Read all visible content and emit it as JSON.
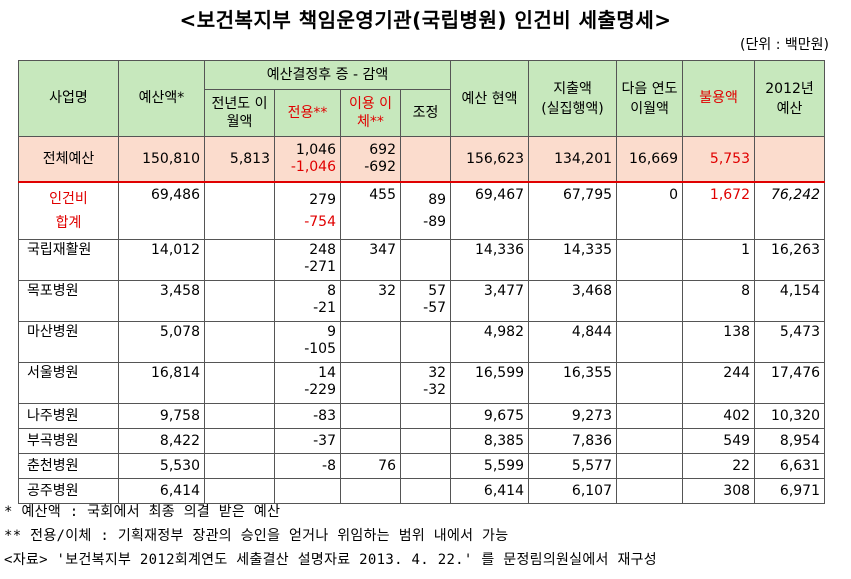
{
  "title": "<보건복지부 책임운영기관(국립병원) 인건비 세출명세>",
  "unit": "(단위 : 백만원)",
  "headers": {
    "biz": "사업명",
    "budget": "예산액*",
    "adjust_group": "예산결정후 증 - 감액",
    "carry_prev": "전년도 이월액",
    "transfer": "전용**",
    "reallocation": "이용 이체**",
    "adjust": "조정",
    "current": "예산 현액",
    "expense_a": "지출액",
    "expense_b": "(실집행액)",
    "carry_next": "다음 연도 이월액",
    "unused": "불용액",
    "budget2012": "2012년 예산"
  },
  "rows": [
    {
      "name": "전체예산",
      "budget": "150,810",
      "carry_prev": "5,813",
      "transfer_a": "1,046",
      "transfer_b": "-1,046",
      "realloc_a": "692",
      "realloc_b": "-692",
      "adjust_a": "",
      "adjust_b": "",
      "current": "156,623",
      "expense": "134,201",
      "carry_next": "16,669",
      "unused": "5,753",
      "budget2012": ""
    },
    {
      "name_a": "인건비",
      "name_b": "합계",
      "budget": "69,486",
      "carry_prev": "",
      "transfer_a": "279",
      "transfer_b": "-754",
      "realloc_a": "455",
      "realloc_b": "",
      "adjust_a": "89",
      "adjust_b": "-89",
      "current": "69,467",
      "expense": "67,795",
      "carry_next": "0",
      "unused": "1,672",
      "budget2012": "76,242"
    },
    {
      "name": "국립재활원",
      "budget": "14,012",
      "carry_prev": "",
      "transfer_a": "248",
      "transfer_b": "-271",
      "realloc_a": "347",
      "realloc_b": "",
      "adjust_a": "",
      "adjust_b": "",
      "current": "14,336",
      "expense": "14,335",
      "carry_next": "",
      "unused": "1",
      "budget2012": "16,263"
    },
    {
      "name": "목포병원",
      "budget": "3,458",
      "carry_prev": "",
      "transfer_a": "8",
      "transfer_b": "-21",
      "realloc_a": "32",
      "realloc_b": "",
      "adjust_a": "57",
      "adjust_b": "-57",
      "current": "3,477",
      "expense": "3,468",
      "carry_next": "",
      "unused": "8",
      "budget2012": "4,154"
    },
    {
      "name": "마산병원",
      "budget": "5,078",
      "carry_prev": "",
      "transfer_a": "9",
      "transfer_b": "-105",
      "realloc_a": "",
      "realloc_b": "",
      "adjust_a": "",
      "adjust_b": "",
      "current": "4,982",
      "expense": "4,844",
      "carry_next": "",
      "unused": "138",
      "budget2012": "5,473"
    },
    {
      "name": "서울병원",
      "budget": "16,814",
      "carry_prev": "",
      "transfer_a": "14",
      "transfer_b": "-229",
      "realloc_a": "",
      "realloc_b": "",
      "adjust_a": "32",
      "adjust_b": "-32",
      "current": "16,599",
      "expense": "16,355",
      "carry_next": "",
      "unused": "244",
      "budget2012": "17,476"
    },
    {
      "name": "나주병원",
      "budget": "9,758",
      "carry_prev": "",
      "transfer_a": "-83",
      "transfer_b": "",
      "realloc_a": "",
      "realloc_b": "",
      "adjust_a": "",
      "adjust_b": "",
      "current": "9,675",
      "expense": "9,273",
      "carry_next": "",
      "unused": "402",
      "budget2012": "10,320"
    },
    {
      "name": "부곡병원",
      "budget": "8,422",
      "carry_prev": "",
      "transfer_a": "-37",
      "transfer_b": "",
      "realloc_a": "",
      "realloc_b": "",
      "adjust_a": "",
      "adjust_b": "",
      "current": "8,385",
      "expense": "7,836",
      "carry_next": "",
      "unused": "549",
      "budget2012": "8,954"
    },
    {
      "name": "춘천병원",
      "budget": "5,530",
      "carry_prev": "",
      "transfer_a": "-8",
      "transfer_b": "",
      "realloc_a": "76",
      "realloc_b": "",
      "adjust_a": "",
      "adjust_b": "",
      "current": "5,599",
      "expense": "5,577",
      "carry_next": "",
      "unused": "22",
      "budget2012": "6,631"
    },
    {
      "name": "공주병원",
      "budget": "6,414",
      "carry_prev": "",
      "transfer_a": "",
      "transfer_b": "",
      "realloc_a": "",
      "realloc_b": "",
      "adjust_a": "",
      "adjust_b": "",
      "current": "6,414",
      "expense": "6,107",
      "carry_next": "",
      "unused": "308",
      "budget2012": "6,971"
    }
  ],
  "footnotes": {
    "note1": "* 예산액 : 국회에서 최종 의결 받은 예산",
    "note2": "** 전용/이체 : 기획재정부 장관의 승인을 얻거나 위임하는 범위 내에서 가능",
    "source": "<자료> '보건복지부 2012회계연도 세출결산 설명자료 2013. 4. 22.' 를 문정림의원실에서 재구성"
  },
  "colors": {
    "header_bg": "#c7e8bd",
    "total_bg": "#fbdccd",
    "accent_red": "#e00000"
  }
}
